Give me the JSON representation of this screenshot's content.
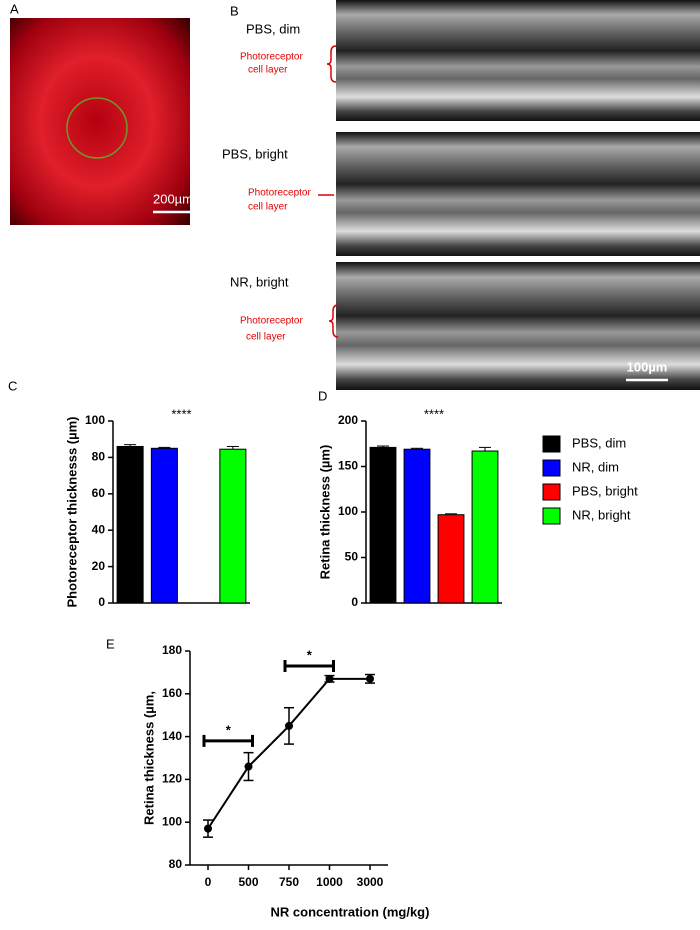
{
  "panel_labels": [
    "A",
    "B",
    "C",
    "D",
    "E"
  ],
  "images": {
    "fundus_scale": "200µm",
    "oct_scale": "100µm",
    "oct": [
      {
        "label": "PBS, dim",
        "layer": [
          "Photoreceptor",
          "cell layer"
        ]
      },
      {
        "label": "PBS, bright",
        "layer": [
          "Photoreceptor",
          "cell layer"
        ]
      },
      {
        "label": "NR, bright",
        "layer": [
          "Photoreceptor",
          "cell layer"
        ]
      }
    ]
  },
  "legend": {
    "names": [
      "PBS, dim",
      "NR, dim",
      "PBS, bright",
      "NR, bright"
    ],
    "colors": [
      "#000000",
      "#0000ff",
      "#ff0000",
      "#00ff00"
    ]
  },
  "chart_data": [
    {
      "type": "bar",
      "ylabel": "Photoreceptor thicknesss (µm)",
      "annotation": "****",
      "values": [
        86,
        85,
        null,
        84.5
      ],
      "errors": [
        1,
        0.5,
        null,
        1.5
      ],
      "ylim": [
        0,
        100
      ],
      "yticks": [
        0,
        20,
        40,
        60,
        80,
        100
      ]
    },
    {
      "type": "bar",
      "ylabel": "Retina thickness (µm)",
      "annotation": "****",
      "values": [
        171,
        169,
        97,
        167
      ],
      "errors": [
        1.5,
        1,
        1,
        4
      ],
      "ylim": [
        0,
        200
      ],
      "yticks": [
        0,
        50,
        100,
        150,
        200
      ]
    },
    {
      "type": "line",
      "xlabel": "NR concentration (mg/kg)",
      "ylabel": "Retina thickness (µm,",
      "categories": [
        "0",
        "500",
        "750",
        "1000",
        "3000"
      ],
      "values": [
        97,
        126,
        145,
        167,
        167
      ],
      "errors": [
        4,
        6.5,
        8.5,
        1.5,
        2
      ],
      "ylim": [
        80,
        180
      ],
      "yticks": [
        80,
        100,
        120,
        140,
        160,
        180
      ],
      "significance": [
        {
          "text": "*",
          "from": 0,
          "to": 1,
          "y": 138
        },
        {
          "text": "*",
          "from": 2,
          "to": 3,
          "y": 173
        }
      ]
    }
  ]
}
